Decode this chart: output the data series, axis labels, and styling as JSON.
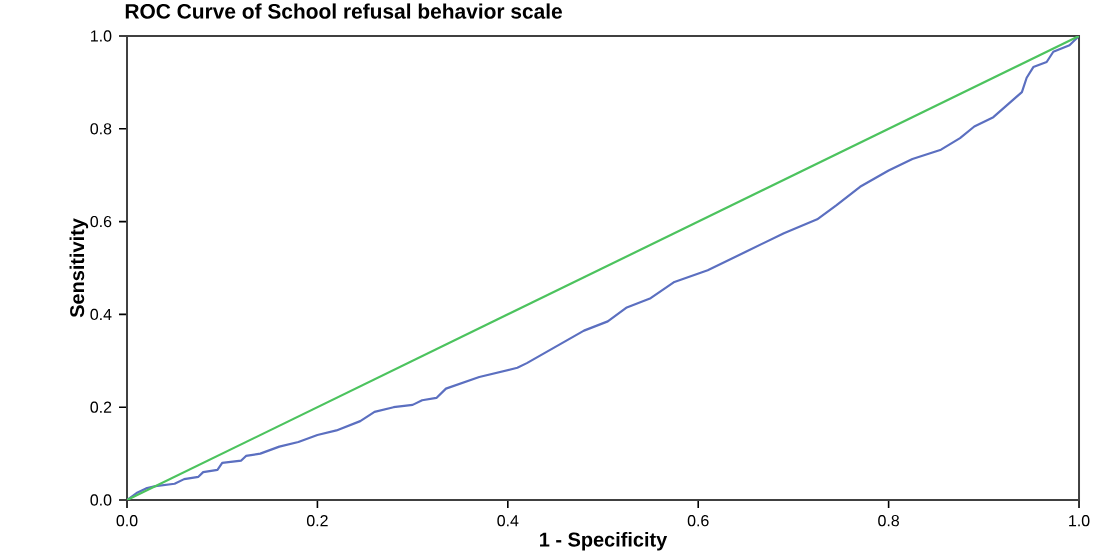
{
  "chart_data": {
    "type": "line",
    "title": "ROC Curve of School refusal behavior scale",
    "xlabel": "1 - Specificity",
    "ylabel": "Sensitivity",
    "xlim": [
      0,
      1
    ],
    "ylim": [
      0,
      1
    ],
    "xticks": [
      {
        "value": 0,
        "label": "0.0"
      },
      {
        "value": 0.2,
        "label": "0.2"
      },
      {
        "value": 0.4,
        "label": "0.4"
      },
      {
        "value": 0.6,
        "label": "0.6"
      },
      {
        "value": 0.8,
        "label": "0.8"
      },
      {
        "value": 1,
        "label": "1.0"
      }
    ],
    "yticks": [
      {
        "value": 0,
        "label": "0.0"
      },
      {
        "value": 0.2,
        "label": "0.2"
      },
      {
        "value": 0.4,
        "label": "0.4"
      },
      {
        "value": 0.6,
        "label": "0.6"
      },
      {
        "value": 0.8,
        "label": "0.8"
      },
      {
        "value": 1,
        "label": "1.0"
      }
    ],
    "grid": false,
    "marker": "none",
    "line_style": "solid",
    "series": [
      {
        "color": "#5b6fc0",
        "x": [
          0,
          0.01,
          0.02,
          0.03,
          0.05,
          0.06,
          0.075,
          0.08,
          0.095,
          0.1,
          0.12,
          0.125,
          0.14,
          0.16,
          0.18,
          0.2,
          0.22,
          0.245,
          0.26,
          0.28,
          0.3,
          0.31,
          0.325,
          0.335,
          0.37,
          0.41,
          0.42,
          0.45,
          0.48,
          0.505,
          0.525,
          0.55,
          0.575,
          0.61,
          0.65,
          0.69,
          0.725,
          0.745,
          0.77,
          0.8,
          0.825,
          0.855,
          0.875,
          0.89,
          0.91,
          0.94,
          0.945,
          0.952,
          0.966,
          0.973,
          0.99,
          1
        ],
        "values": [
          0,
          0.015,
          0.025,
          0.03,
          0.035,
          0.045,
          0.05,
          0.06,
          0.065,
          0.08,
          0.085,
          0.095,
          0.1,
          0.115,
          0.125,
          0.14,
          0.15,
          0.17,
          0.19,
          0.2,
          0.205,
          0.215,
          0.22,
          0.24,
          0.265,
          0.285,
          0.295,
          0.33,
          0.365,
          0.385,
          0.415,
          0.435,
          0.47,
          0.495,
          0.535,
          0.575,
          0.605,
          0.635,
          0.675,
          0.71,
          0.735,
          0.755,
          0.78,
          0.805,
          0.825,
          0.879,
          0.91,
          0.933,
          0.944,
          0.966,
          0.98,
          1
        ]
      },
      {
        "color": "#4cc35e",
        "x": [
          0,
          1
        ],
        "values": [
          0,
          1
        ]
      }
    ]
  }
}
